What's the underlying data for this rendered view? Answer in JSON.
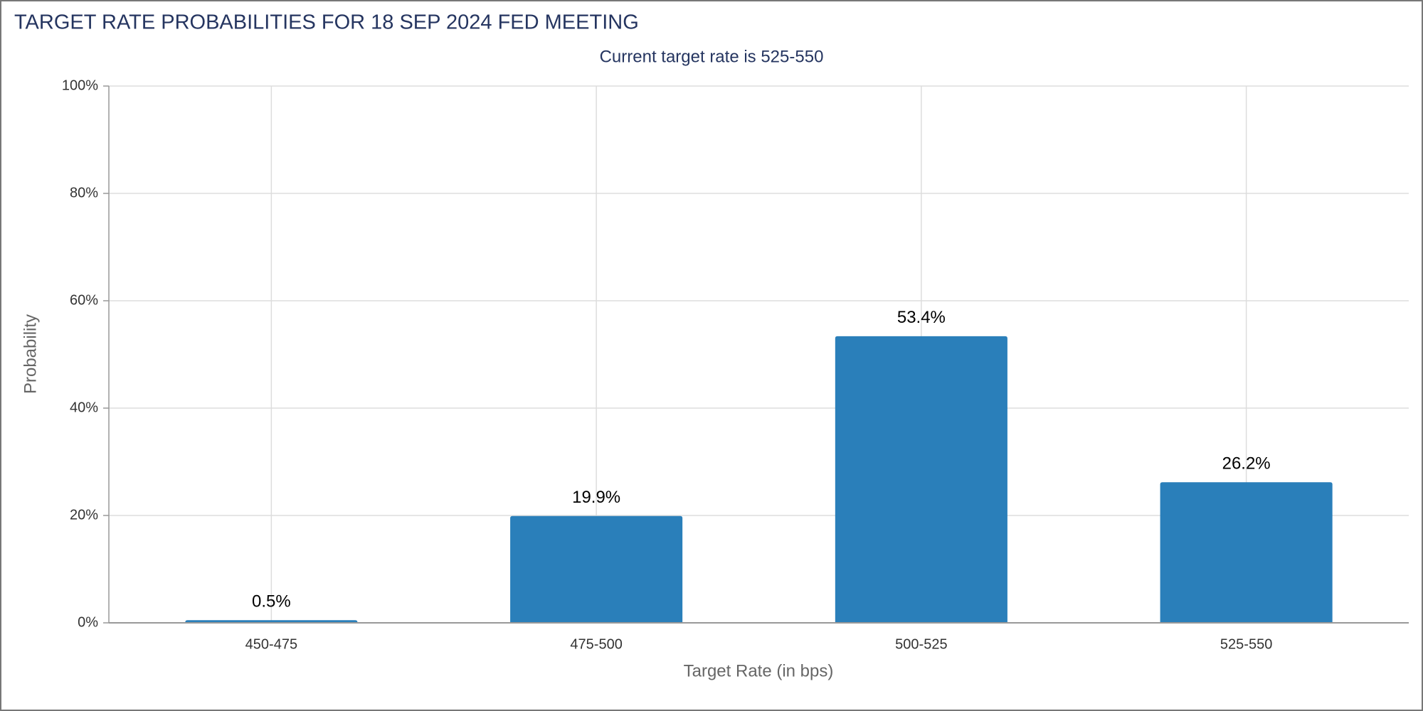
{
  "chart_data": {
    "type": "bar",
    "title": "TARGET RATE PROBABILITIES FOR 18 SEP 2024 FED MEETING",
    "subtitle": "Current target rate is 525-550",
    "xlabel": "Target Rate (in bps)",
    "ylabel": "Probability",
    "categories": [
      "450-475",
      "475-500",
      "500-525",
      "525-550"
    ],
    "values": [
      0.5,
      19.9,
      53.4,
      26.2
    ],
    "value_labels": [
      "0.5%",
      "19.9%",
      "53.4%",
      "26.2%"
    ],
    "color": "#2a7fba",
    "ylim": [
      0,
      100
    ],
    "yticks": [
      {
        "value": 0,
        "label": "0%"
      },
      {
        "value": 20,
        "label": "20%"
      },
      {
        "value": 40,
        "label": "40%"
      },
      {
        "value": 60,
        "label": "60%"
      },
      {
        "value": 80,
        "label": "80%"
      },
      {
        "value": 100,
        "label": "100%"
      }
    ],
    "grid": true
  }
}
